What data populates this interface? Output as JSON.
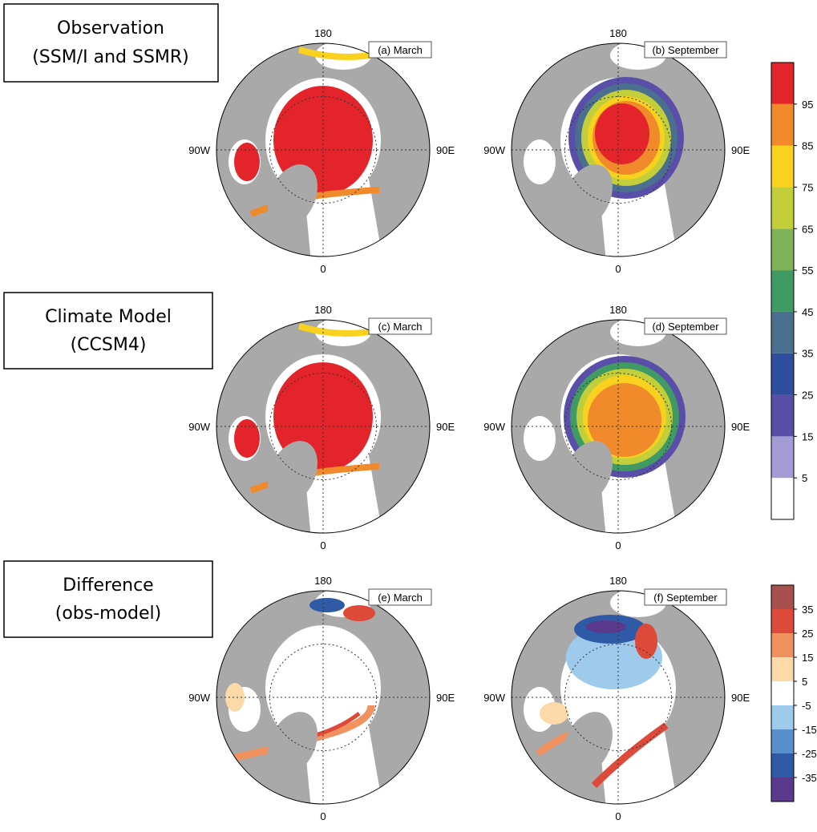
{
  "row_labels": [
    {
      "line1": "Observation",
      "line2": "(SSM/I and SSMR)"
    },
    {
      "line1": "Climate Model",
      "line2": "(CCSM4)"
    },
    {
      "line1": "Difference",
      "line2": "(obs-model)"
    }
  ],
  "panels": [
    {
      "label": "(a) March"
    },
    {
      "label": "(b) September"
    },
    {
      "label": "(c) March"
    },
    {
      "label": "(d) September"
    },
    {
      "label": "(e) March"
    },
    {
      "label": "(f) September"
    }
  ],
  "axis_labels": {
    "top": "180",
    "bottom": "0",
    "left": "90W",
    "right": "90E"
  },
  "colorbars": [
    {
      "ticks": [
        5,
        15,
        25,
        35,
        45,
        55,
        65,
        75,
        85,
        95
      ],
      "colors": [
        "#ffffff",
        "#a29bd4",
        "#5a4fa8",
        "#2f4f9e",
        "#4a6f8f",
        "#3f9a63",
        "#7fb35a",
        "#c2cf3a",
        "#f8d21e",
        "#f08a2a",
        "#e3242b"
      ]
    },
    {
      "ticks": [
        -35,
        -25,
        -15,
        -5,
        5,
        15,
        25,
        35
      ],
      "colors": [
        "#5b3a8e",
        "#2f5aa6",
        "#5a8fce",
        "#9ecbeb",
        "#ffffff",
        "#fcd9a8",
        "#f0915f",
        "#dd4a3a",
        "#a8504e"
      ]
    }
  ]
}
